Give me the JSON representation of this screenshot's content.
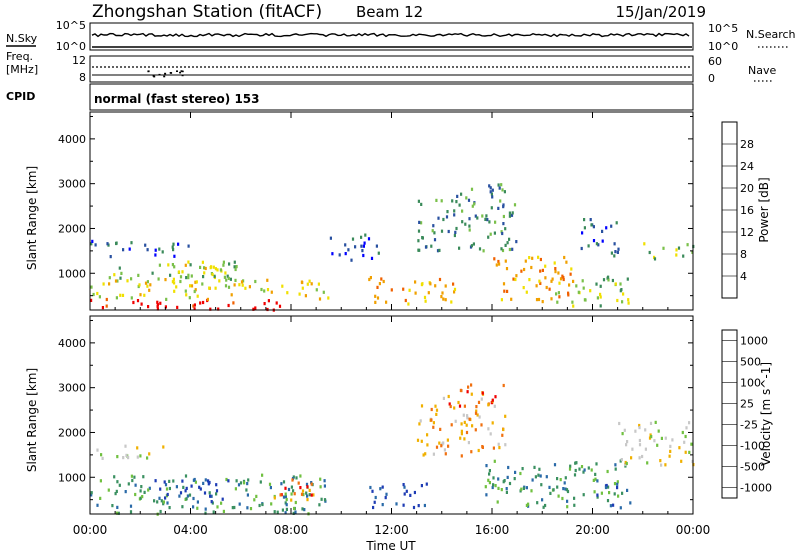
{
  "header": {
    "station": "Zhongshan Station (fitACF)",
    "beam": "Beam 12",
    "date": "15/Jan/2019"
  },
  "sky_panel": {
    "left_label": "N.Sky",
    "right_label": "N.Search",
    "left_ticks": [
      "10^5",
      "10^0"
    ],
    "right_ticks": [
      "10^5",
      "10^0"
    ]
  },
  "freq_panel": {
    "left_label_line1": "Freq.",
    "left_label_line2": "[MHz]",
    "right_label": "Nave",
    "left_ticks": [
      "12",
      "8"
    ],
    "right_ticks": [
      "60",
      "0"
    ]
  },
  "cpid": {
    "label": "CPID",
    "value": "normal (fast stereo) 153"
  },
  "chart_data": [
    {
      "type": "heatmap",
      "name": "power",
      "ylabel": "Slant Range [km]",
      "yticks": [
        1000,
        2000,
        3000,
        4000
      ],
      "ylim": [
        180,
        4600
      ],
      "colorbar_label": "Power [dB]",
      "colorbar_ticks": [
        "4",
        "8",
        "12",
        "16",
        "20",
        "24",
        "28"
      ],
      "colors": [
        "#0000ff",
        "#2850a0",
        "#3a8a5a",
        "#7ac04a",
        "#f0e000",
        "#f0a000",
        "#f06000",
        "#f00000"
      ],
      "regions": [
        {
          "t0": 0.0,
          "t1": 8.0,
          "r0": 200,
          "r1": 450,
          "v": 7
        },
        {
          "t0": 0.0,
          "t1": 9.5,
          "r0": 450,
          "r1": 900,
          "v": 4
        },
        {
          "t0": 0.5,
          "t1": 6.0,
          "r0": 900,
          "r1": 1300,
          "v": 3
        },
        {
          "t0": 0.0,
          "t1": 4.0,
          "r0": 1400,
          "r1": 1750,
          "v": 1
        },
        {
          "t0": 3.0,
          "t1": 5.5,
          "r0": 700,
          "r1": 1300,
          "v": 4
        },
        {
          "t0": 9.5,
          "t1": 11.5,
          "r0": 1300,
          "r1": 1900,
          "v": 1
        },
        {
          "t0": 11.0,
          "t1": 14.5,
          "r0": 350,
          "r1": 950,
          "v": 5
        },
        {
          "t0": 13.0,
          "t1": 17.0,
          "r0": 1500,
          "r1": 2700,
          "v": 2
        },
        {
          "t0": 14.5,
          "t1": 16.5,
          "r0": 2500,
          "r1": 3100,
          "v": 2
        },
        {
          "t0": 16.0,
          "t1": 19.5,
          "r0": 400,
          "r1": 1400,
          "v": 5
        },
        {
          "t0": 18.5,
          "t1": 21.5,
          "r0": 300,
          "r1": 1000,
          "v": 3
        },
        {
          "t0": 19.5,
          "t1": 21.0,
          "r0": 1400,
          "r1": 2300,
          "v": 1
        },
        {
          "t0": 22.0,
          "t1": 24.0,
          "r0": 1350,
          "r1": 1700,
          "v": 3
        }
      ]
    },
    {
      "type": "heatmap",
      "name": "velocity",
      "ylabel": "Slant Range [km]",
      "xlabel": "Time UT",
      "xticks": [
        "00:00",
        "04:00",
        "08:00",
        "12:00",
        "16:00",
        "20:00",
        "00:00"
      ],
      "xlim": [
        0,
        24
      ],
      "yticks": [
        1000,
        2000,
        3000,
        4000
      ],
      "ylim": [
        180,
        4600
      ],
      "colorbar_label": "Velocity [m s^-1]",
      "colorbar_ticks": [
        "1000",
        "500",
        "100",
        "25",
        "-25",
        "-100",
        "-500",
        "-1000"
      ],
      "colors": [
        "#1e3cb4",
        "#2a6aa8",
        "#3a9060",
        "#70c040",
        "#c8c8c8",
        "#f0b000",
        "#f07010",
        "#f00000"
      ],
      "regions": [
        {
          "t0": 0.0,
          "t1": 9.5,
          "r0": 200,
          "r1": 1100,
          "v": 2
        },
        {
          "t0": 2.5,
          "t1": 5.5,
          "r0": 450,
          "r1": 1000,
          "v": 0
        },
        {
          "t0": 7.0,
          "t1": 9.0,
          "r0": 500,
          "r1": 1000,
          "v": 6
        },
        {
          "t0": 0.0,
          "t1": 3.0,
          "r0": 1450,
          "r1": 1750,
          "v": 4
        },
        {
          "t0": 11.0,
          "t1": 13.5,
          "r0": 350,
          "r1": 900,
          "v": 0
        },
        {
          "t0": 13.0,
          "t1": 16.5,
          "r0": 1500,
          "r1": 2800,
          "v": 5
        },
        {
          "t0": 15.5,
          "t1": 21.5,
          "r0": 350,
          "r1": 1400,
          "v": 2
        },
        {
          "t0": 20.0,
          "t1": 21.0,
          "r0": 400,
          "r1": 900,
          "v": 0
        },
        {
          "t0": 21.0,
          "t1": 24.0,
          "r0": 1300,
          "r1": 2300,
          "v": 4
        },
        {
          "t0": 14.0,
          "t1": 16.5,
          "r0": 2600,
          "r1": 3100,
          "v": 6
        }
      ]
    }
  ]
}
